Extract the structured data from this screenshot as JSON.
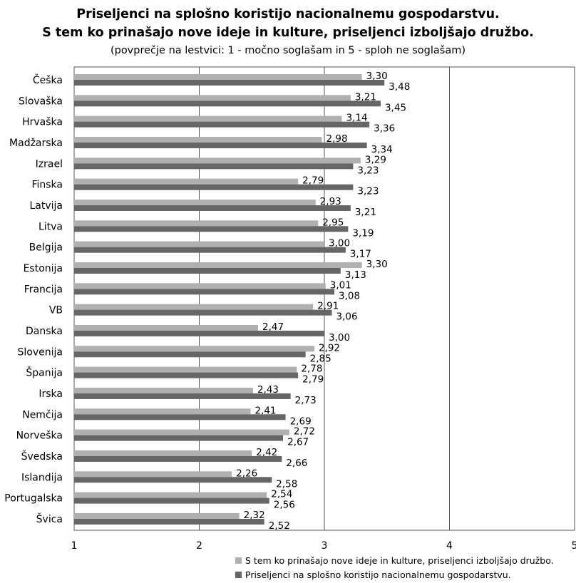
{
  "title_line1": "Priseljenci na splošno koristijo nacionalnemu gospodarstvu.",
  "title_line2": "S tem ko prinašajo nove ideje in kulture, priseljenci izboljšajo družbo.",
  "subtitle": "(povprečje na lestvici: 1 - močno soglašam in 5 - sploh ne soglašam)",
  "colors": {
    "series1": "#b0b0b0",
    "series2": "#666666",
    "grid": "#555555"
  },
  "chart_data": {
    "type": "bar",
    "orientation": "horizontal",
    "title": "Priseljenci na splošno koristijo nacionalnemu gospodarstvu. S tem ko prinašajo nove ideje in kulture, priseljenci izboljšajo družbo.",
    "subtitle": "(povprečje na lestvici: 1 - močno soglašam in 5 - sploh ne soglašam)",
    "xlim": [
      1,
      5
    ],
    "xticks": [
      "1",
      "2",
      "3",
      "4",
      "5"
    ],
    "grid": true,
    "legend_position": "bottom-right",
    "categories": [
      "Češka",
      "Slovaška",
      "Hrvaška",
      "Madžarska",
      "Izrael",
      "Finska",
      "Latvija",
      "Litva",
      "Belgija",
      "Estonija",
      "Francija",
      "VB",
      "Danska",
      "Slovenija",
      "Španija",
      "Irska",
      "Nemčija",
      "Norveška",
      "Švedska",
      "Islandija",
      "Portugalska",
      "Švica"
    ],
    "series": [
      {
        "name": "S tem ko prinašajo nove ideje in kulture, priseljenci izboljšajo družbo.",
        "values": [
          3.3,
          3.21,
          3.14,
          2.98,
          3.29,
          2.79,
          2.93,
          2.95,
          3.0,
          3.3,
          3.01,
          2.91,
          2.47,
          2.92,
          2.78,
          2.43,
          2.41,
          2.72,
          2.42,
          2.26,
          2.54,
          2.32
        ],
        "labels": [
          "3,30",
          "3,21",
          "3,14",
          "2,98",
          "3,29",
          "2,79",
          "2,93",
          "2,95",
          "3,00",
          "3,30",
          "3,01",
          "2,91",
          "2,47",
          "2,92",
          "2,78",
          "2,43",
          "2,41",
          "2,72",
          "2,42",
          "2,26",
          "2,54",
          "2,32"
        ]
      },
      {
        "name": "Priseljenci na splošno koristijo nacionalnemu gospodarstvu.",
        "values": [
          3.48,
          3.45,
          3.36,
          3.34,
          3.23,
          3.23,
          3.21,
          3.19,
          3.17,
          3.13,
          3.08,
          3.06,
          3.0,
          2.85,
          2.79,
          2.73,
          2.69,
          2.67,
          2.66,
          2.58,
          2.56,
          2.52
        ],
        "labels": [
          "3,48",
          "3,45",
          "3,36",
          "3,34",
          "3,23",
          "3,23",
          "3,21",
          "3,19",
          "3,17",
          "3,13",
          "3,08",
          "3,06",
          "3,00",
          "2,85",
          "2,79",
          "2,73",
          "2,69",
          "2,67",
          "2,66",
          "2,58",
          "2,56",
          "2,52"
        ]
      }
    ]
  }
}
